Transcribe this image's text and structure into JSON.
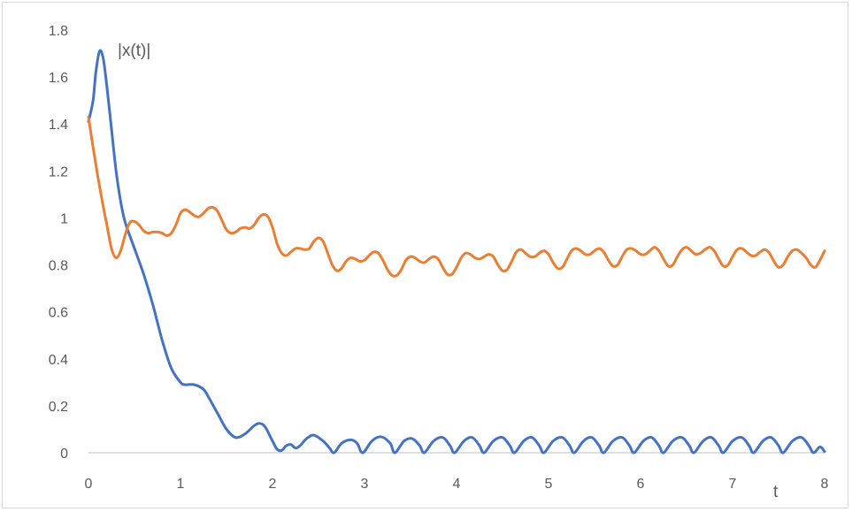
{
  "chart_data": {
    "type": "line",
    "title": "",
    "xlabel": "t",
    "ylabel": "|x(t)|",
    "xlim": [
      0,
      8
    ],
    "ylim": [
      0,
      1.8
    ],
    "x_ticks": [
      "0",
      "1",
      "2",
      "3",
      "4",
      "5",
      "6",
      "7",
      "8"
    ],
    "y_ticks": [
      "0",
      "0.2",
      "0.4",
      "0.6",
      "0.8",
      "1",
      "1.2",
      "1.4",
      "1.6",
      "1.8"
    ],
    "grid": false,
    "legend": "none",
    "series": [
      {
        "color": "#4472c4",
        "points": [
          [
            0.0,
            1.41
          ],
          [
            0.05,
            1.5
          ],
          [
            0.08,
            1.62
          ],
          [
            0.12,
            1.71
          ],
          [
            0.16,
            1.68
          ],
          [
            0.2,
            1.56
          ],
          [
            0.25,
            1.38
          ],
          [
            0.3,
            1.2
          ],
          [
            0.35,
            1.07
          ],
          [
            0.4,
            0.98
          ],
          [
            0.5,
            0.87
          ],
          [
            0.6,
            0.76
          ],
          [
            0.7,
            0.63
          ],
          [
            0.8,
            0.48
          ],
          [
            0.9,
            0.36
          ],
          [
            1.0,
            0.3
          ],
          [
            1.05,
            0.29
          ],
          [
            1.15,
            0.29
          ],
          [
            1.25,
            0.27
          ],
          [
            1.3,
            0.24
          ],
          [
            1.4,
            0.17
          ],
          [
            1.5,
            0.1
          ],
          [
            1.6,
            0.065
          ],
          [
            1.7,
            0.08
          ],
          [
            1.8,
            0.115
          ],
          [
            1.86,
            0.125
          ],
          [
            1.92,
            0.11
          ],
          [
            2.0,
            0.05
          ],
          [
            2.05,
            0.015
          ],
          [
            2.1,
            0.01
          ],
          [
            2.15,
            0.03
          ],
          [
            2.2,
            0.035
          ],
          [
            2.25,
            0.02
          ],
          [
            2.3,
            0.03
          ],
          [
            2.37,
            0.06
          ],
          [
            2.45,
            0.075
          ],
          [
            2.55,
            0.05
          ],
          [
            2.62,
            0.02
          ],
          [
            2.67,
            0.0
          ],
          [
            2.75,
            0.04
          ],
          [
            2.85,
            0.055
          ],
          [
            2.92,
            0.04
          ],
          [
            2.98,
            0.0
          ],
          [
            3.08,
            0.05
          ],
          [
            3.18,
            0.068
          ],
          [
            3.28,
            0.04
          ],
          [
            3.33,
            0.0
          ],
          [
            3.43,
            0.05
          ],
          [
            3.52,
            0.06
          ],
          [
            3.6,
            0.03
          ],
          [
            3.65,
            0.0
          ],
          [
            3.75,
            0.05
          ],
          [
            3.85,
            0.065
          ],
          [
            3.93,
            0.03
          ],
          [
            3.98,
            0.0
          ],
          [
            4.08,
            0.05
          ],
          [
            4.17,
            0.065
          ],
          [
            4.25,
            0.03
          ],
          [
            4.3,
            0.0
          ],
          [
            4.4,
            0.05
          ],
          [
            4.5,
            0.065
          ],
          [
            4.58,
            0.03
          ],
          [
            4.63,
            0.0
          ],
          [
            4.73,
            0.05
          ],
          [
            4.82,
            0.065
          ],
          [
            4.9,
            0.03
          ],
          [
            4.95,
            0.0
          ],
          [
            5.05,
            0.05
          ],
          [
            5.15,
            0.065
          ],
          [
            5.23,
            0.03
          ],
          [
            5.28,
            0.0
          ],
          [
            5.38,
            0.05
          ],
          [
            5.47,
            0.065
          ],
          [
            5.55,
            0.03
          ],
          [
            5.6,
            0.0
          ],
          [
            5.7,
            0.05
          ],
          [
            5.8,
            0.065
          ],
          [
            5.88,
            0.03
          ],
          [
            5.93,
            0.0
          ],
          [
            6.03,
            0.05
          ],
          [
            6.12,
            0.065
          ],
          [
            6.2,
            0.03
          ],
          [
            6.25,
            0.0
          ],
          [
            6.35,
            0.05
          ],
          [
            6.45,
            0.065
          ],
          [
            6.53,
            0.03
          ],
          [
            6.58,
            0.0
          ],
          [
            6.68,
            0.05
          ],
          [
            6.77,
            0.065
          ],
          [
            6.85,
            0.03
          ],
          [
            6.9,
            0.0
          ],
          [
            7.0,
            0.05
          ],
          [
            7.1,
            0.065
          ],
          [
            7.18,
            0.03
          ],
          [
            7.23,
            0.0
          ],
          [
            7.33,
            0.05
          ],
          [
            7.42,
            0.065
          ],
          [
            7.5,
            0.03
          ],
          [
            7.55,
            0.0
          ],
          [
            7.65,
            0.05
          ],
          [
            7.75,
            0.065
          ],
          [
            7.83,
            0.03
          ],
          [
            7.88,
            0.0
          ],
          [
            7.95,
            0.025
          ],
          [
            8.0,
            0.005
          ]
        ]
      },
      {
        "color": "#ed7d31",
        "points": [
          [
            0.0,
            1.43
          ],
          [
            0.05,
            1.3
          ],
          [
            0.1,
            1.18
          ],
          [
            0.15,
            1.07
          ],
          [
            0.2,
            0.97
          ],
          [
            0.25,
            0.87
          ],
          [
            0.3,
            0.83
          ],
          [
            0.35,
            0.86
          ],
          [
            0.4,
            0.93
          ],
          [
            0.45,
            0.98
          ],
          [
            0.5,
            0.985
          ],
          [
            0.55,
            0.97
          ],
          [
            0.6,
            0.945
          ],
          [
            0.65,
            0.935
          ],
          [
            0.7,
            0.94
          ],
          [
            0.75,
            0.94
          ],
          [
            0.8,
            0.935
          ],
          [
            0.85,
            0.925
          ],
          [
            0.9,
            0.935
          ],
          [
            0.95,
            0.97
          ],
          [
            1.0,
            1.02
          ],
          [
            1.05,
            1.035
          ],
          [
            1.1,
            1.025
          ],
          [
            1.15,
            1.01
          ],
          [
            1.2,
            1.005
          ],
          [
            1.25,
            1.02
          ],
          [
            1.3,
            1.04
          ],
          [
            1.35,
            1.045
          ],
          [
            1.4,
            1.03
          ],
          [
            1.45,
            0.99
          ],
          [
            1.5,
            0.95
          ],
          [
            1.55,
            0.935
          ],
          [
            1.6,
            0.94
          ],
          [
            1.65,
            0.955
          ],
          [
            1.7,
            0.96
          ],
          [
            1.75,
            0.955
          ],
          [
            1.8,
            0.97
          ],
          [
            1.85,
            1.0
          ],
          [
            1.9,
            1.015
          ],
          [
            1.95,
            1.005
          ],
          [
            2.0,
            0.96
          ],
          [
            2.05,
            0.89
          ],
          [
            2.1,
            0.85
          ],
          [
            2.15,
            0.84
          ],
          [
            2.2,
            0.855
          ],
          [
            2.25,
            0.87
          ],
          [
            2.3,
            0.87
          ],
          [
            2.35,
            0.865
          ],
          [
            2.4,
            0.87
          ],
          [
            2.45,
            0.9
          ],
          [
            2.5,
            0.915
          ],
          [
            2.55,
            0.9
          ],
          [
            2.6,
            0.85
          ],
          [
            2.65,
            0.8
          ],
          [
            2.7,
            0.775
          ],
          [
            2.75,
            0.785
          ],
          [
            2.8,
            0.815
          ],
          [
            2.85,
            0.83
          ],
          [
            2.9,
            0.825
          ],
          [
            2.95,
            0.815
          ],
          [
            3.0,
            0.82
          ],
          [
            3.05,
            0.84
          ],
          [
            3.1,
            0.855
          ],
          [
            3.15,
            0.85
          ],
          [
            3.2,
            0.82
          ],
          [
            3.25,
            0.78
          ],
          [
            3.3,
            0.755
          ],
          [
            3.35,
            0.755
          ],
          [
            3.4,
            0.78
          ],
          [
            3.45,
            0.82
          ],
          [
            3.5,
            0.835
          ],
          [
            3.55,
            0.83
          ],
          [
            3.6,
            0.815
          ],
          [
            3.65,
            0.81
          ],
          [
            3.7,
            0.825
          ],
          [
            3.75,
            0.835
          ],
          [
            3.8,
            0.825
          ],
          [
            3.85,
            0.79
          ],
          [
            3.9,
            0.76
          ],
          [
            3.95,
            0.76
          ],
          [
            4.0,
            0.79
          ],
          [
            4.05,
            0.83
          ],
          [
            4.1,
            0.85
          ],
          [
            4.15,
            0.845
          ],
          [
            4.2,
            0.83
          ],
          [
            4.25,
            0.825
          ],
          [
            4.3,
            0.835
          ],
          [
            4.35,
            0.845
          ],
          [
            4.4,
            0.835
          ],
          [
            4.45,
            0.8
          ],
          [
            4.5,
            0.775
          ],
          [
            4.55,
            0.78
          ],
          [
            4.6,
            0.815
          ],
          [
            4.65,
            0.855
          ],
          [
            4.7,
            0.865
          ],
          [
            4.75,
            0.85
          ],
          [
            4.8,
            0.835
          ],
          [
            4.85,
            0.835
          ],
          [
            4.9,
            0.85
          ],
          [
            4.95,
            0.86
          ],
          [
            5.0,
            0.845
          ],
          [
            5.05,
            0.81
          ],
          [
            5.1,
            0.785
          ],
          [
            5.15,
            0.79
          ],
          [
            5.2,
            0.825
          ],
          [
            5.25,
            0.86
          ],
          [
            5.3,
            0.87
          ],
          [
            5.35,
            0.86
          ],
          [
            5.4,
            0.845
          ],
          [
            5.45,
            0.845
          ],
          [
            5.5,
            0.86
          ],
          [
            5.55,
            0.87
          ],
          [
            5.6,
            0.855
          ],
          [
            5.65,
            0.82
          ],
          [
            5.7,
            0.795
          ],
          [
            5.75,
            0.8
          ],
          [
            5.8,
            0.835
          ],
          [
            5.85,
            0.865
          ],
          [
            5.9,
            0.87
          ],
          [
            5.95,
            0.86
          ],
          [
            6.0,
            0.845
          ],
          [
            6.05,
            0.845
          ],
          [
            6.1,
            0.86
          ],
          [
            6.15,
            0.875
          ],
          [
            6.2,
            0.86
          ],
          [
            6.25,
            0.825
          ],
          [
            6.3,
            0.795
          ],
          [
            6.35,
            0.8
          ],
          [
            6.4,
            0.835
          ],
          [
            6.45,
            0.865
          ],
          [
            6.5,
            0.875
          ],
          [
            6.55,
            0.86
          ],
          [
            6.6,
            0.845
          ],
          [
            6.65,
            0.85
          ],
          [
            6.7,
            0.865
          ],
          [
            6.75,
            0.875
          ],
          [
            6.8,
            0.86
          ],
          [
            6.85,
            0.825
          ],
          [
            6.9,
            0.795
          ],
          [
            6.95,
            0.8
          ],
          [
            7.0,
            0.835
          ],
          [
            7.05,
            0.865
          ],
          [
            7.1,
            0.87
          ],
          [
            7.15,
            0.855
          ],
          [
            7.2,
            0.84
          ],
          [
            7.25,
            0.84
          ],
          [
            7.3,
            0.855
          ],
          [
            7.35,
            0.865
          ],
          [
            7.4,
            0.85
          ],
          [
            7.45,
            0.815
          ],
          [
            7.5,
            0.79
          ],
          [
            7.55,
            0.8
          ],
          [
            7.6,
            0.835
          ],
          [
            7.65,
            0.86
          ],
          [
            7.7,
            0.865
          ],
          [
            7.75,
            0.85
          ],
          [
            7.8,
            0.83
          ],
          [
            7.85,
            0.8
          ],
          [
            7.9,
            0.79
          ],
          [
            7.95,
            0.82
          ],
          [
            8.0,
            0.86
          ]
        ]
      }
    ]
  }
}
